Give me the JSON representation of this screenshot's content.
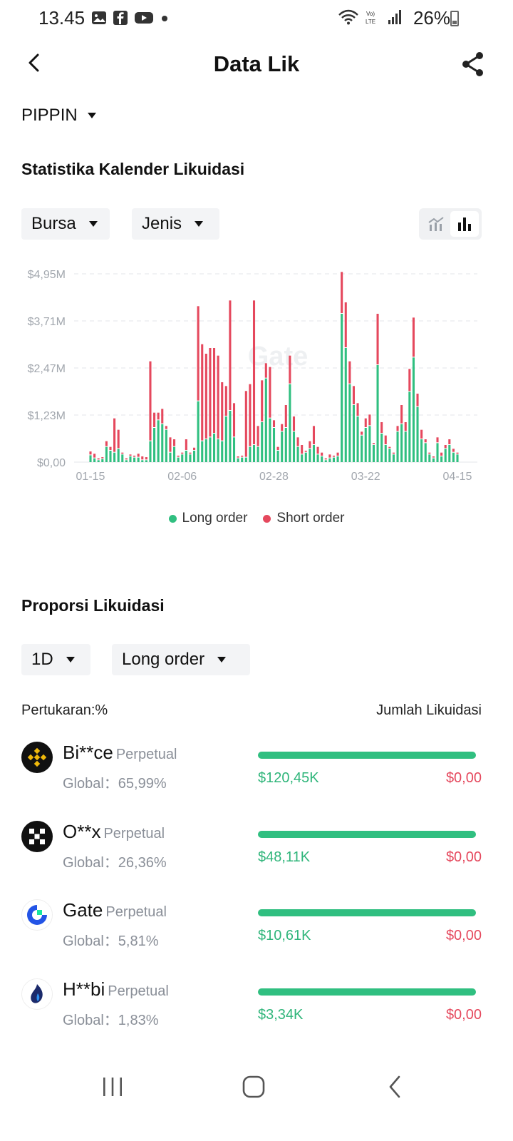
{
  "status_bar": {
    "time": "13.45",
    "battery": "26%",
    "left_icons": [
      "gallery-icon",
      "facebook-icon",
      "youtube-icon",
      "dot-icon"
    ],
    "right_icons": [
      "wifi-icon",
      "volte-icon",
      "signal-icon",
      "battery-icon"
    ]
  },
  "header": {
    "title": "Data Lik"
  },
  "coin": {
    "label": "PIPPIN"
  },
  "calendar": {
    "title": "Statistika Kalender Likuidasi",
    "filters": {
      "exchange": "Bursa",
      "type": "Jenis"
    },
    "watermark": "Gate"
  },
  "chart_data": {
    "type": "bar",
    "stacked": true,
    "x_tick_labels": [
      "01-15",
      "02-06",
      "02-28",
      "03-22",
      "04-15"
    ],
    "y_tick_labels": [
      "$0,00",
      "$1,23M",
      "$2,47M",
      "$3,71M",
      "$4,95M"
    ],
    "ylim": [
      0,
      4.95
    ],
    "units": "USD millions",
    "grid": true,
    "legend_position": "bottom",
    "colors": {
      "long": "#30bf80",
      "short": "#e5485d"
    },
    "series": [
      {
        "name": "Long order",
        "values": [
          0.18,
          0.1,
          0.05,
          0.08,
          0.4,
          0.3,
          0.25,
          0.35,
          0.2,
          0.05,
          0.15,
          0.12,
          0.12,
          0.05,
          0.05,
          0.55,
          0.9,
          1.1,
          1.0,
          0.85,
          0.25,
          0.4,
          0.12,
          0.2,
          0.3,
          0.2,
          0.3,
          1.6,
          0.55,
          0.6,
          0.65,
          0.75,
          0.6,
          0.55,
          1.2,
          1.35,
          0.65,
          0.1,
          0.12,
          0.12,
          0.4,
          0.45,
          0.4,
          1.05,
          2.2,
          1.15,
          0.9,
          0.3,
          0.8,
          0.9,
          2.05,
          0.8,
          0.4,
          0.2,
          0.25,
          0.35,
          0.45,
          0.2,
          0.15,
          0.05,
          0.1,
          0.12,
          0.15,
          3.9,
          3.0,
          2.05,
          1.5,
          1.2,
          0.7,
          0.9,
          0.95,
          0.45,
          2.55,
          0.75,
          0.45,
          0.35,
          0.2,
          0.8,
          1.0,
          0.8,
          1.85,
          2.75,
          1.45,
          0.6,
          0.5,
          0.2,
          0.1,
          0.5,
          0.15,
          0.35,
          0.45,
          0.25,
          0.2
        ],
        "note": "Approximate per-day values; chart shows about 93 daily bars from 01-15 to 04-15"
      },
      {
        "name": "Short order",
        "values": [
          0.1,
          0.12,
          0.05,
          0.05,
          0.15,
          0.1,
          0.9,
          0.5,
          0.05,
          0.05,
          0.05,
          0.05,
          0.1,
          0.1,
          0.08,
          2.1,
          0.4,
          0.2,
          0.4,
          0.1,
          0.4,
          0.2,
          0.05,
          0.05,
          0.3,
          0.05,
          0.08,
          2.5,
          2.55,
          2.25,
          2.35,
          2.25,
          2.2,
          1.55,
          0.8,
          2.9,
          0.9,
          0.05,
          0.05,
          1.75,
          1.65,
          3.8,
          0.55,
          1.1,
          0.4,
          1.35,
          0.2,
          0.1,
          0.2,
          0.6,
          0.75,
          0.4,
          0.25,
          0.25,
          0.05,
          0.2,
          0.5,
          0.2,
          0.1,
          0.05,
          0.1,
          0.05,
          0.1,
          1.1,
          1.2,
          0.6,
          0.5,
          0.35,
          0.1,
          0.25,
          0.3,
          0.05,
          1.35,
          0.3,
          0.25,
          0.05,
          0.05,
          0.15,
          0.5,
          0.25,
          0.6,
          1.05,
          0.35,
          0.25,
          0.1,
          0.05,
          0.05,
          0.15,
          0.1,
          0.1,
          0.15,
          0.1,
          0.05
        ]
      }
    ]
  },
  "legend": {
    "long": "Long order",
    "short": "Short order"
  },
  "proportion": {
    "title": "Proporsi Likuidasi",
    "period": "1D",
    "order_type": "Long order",
    "col_left": "Pertukaran:%",
    "col_right": "Jumlah Likuidasi",
    "exchanges": [
      {
        "name": "Bi**ce",
        "type": "Perpetual",
        "global": "Global：65,99%",
        "long": "$120,45K",
        "short": "$0,00",
        "long_fraction": 1.0,
        "icon": "binance-icon"
      },
      {
        "name": "O**x",
        "type": "Perpetual",
        "global": "Global：26,36%",
        "long": "$48,11K",
        "short": "$0,00",
        "long_fraction": 1.0,
        "icon": "okx-icon"
      },
      {
        "name": "Gate",
        "type": "Perpetual",
        "global": "Global：5,81%",
        "long": "$10,61K",
        "short": "$0,00",
        "long_fraction": 1.0,
        "icon": "gate-icon"
      },
      {
        "name": "H**bi",
        "type": "Perpetual",
        "global": "Global：1,83%",
        "long": "$3,34K",
        "short": "$0,00",
        "long_fraction": 1.0,
        "icon": "huobi-icon"
      }
    ]
  }
}
